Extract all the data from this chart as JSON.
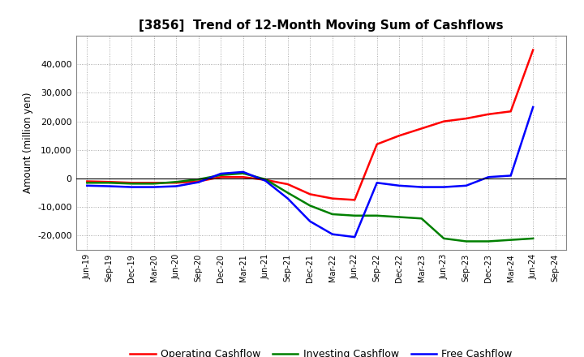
{
  "title": "[3856]  Trend of 12-Month Moving Sum of Cashflows",
  "ylabel": "Amount (million yen)",
  "ylim": [
    -25000,
    50000
  ],
  "yticks": [
    -20000,
    -10000,
    0,
    10000,
    20000,
    30000,
    40000
  ],
  "background_color": "#ffffff",
  "grid_color": "#aaaaaa",
  "labels": [
    "Jun-19",
    "Sep-19",
    "Dec-19",
    "Mar-20",
    "Jun-20",
    "Sep-20",
    "Dec-20",
    "Mar-21",
    "Jun-21",
    "Sep-21",
    "Dec-21",
    "Mar-22",
    "Jun-22",
    "Sep-22",
    "Dec-22",
    "Mar-23",
    "Jun-23",
    "Sep-23",
    "Dec-23",
    "Mar-24",
    "Jun-24",
    "Sep-24"
  ],
  "operating": [
    -1000,
    -1200,
    -1500,
    -1500,
    -1500,
    -1000,
    500,
    500,
    -500,
    -2000,
    -5500,
    -7000,
    -7500,
    12000,
    15000,
    17500,
    20000,
    21000,
    22500,
    23500,
    45000,
    null
  ],
  "investing": [
    -1500,
    -1500,
    -1800,
    -1800,
    -1200,
    -300,
    1200,
    1800,
    -300,
    -5000,
    -9500,
    -12500,
    -13000,
    -13000,
    -13500,
    -14000,
    -21000,
    -22000,
    -22000,
    -21500,
    -21000,
    null
  ],
  "free": [
    -2500,
    -2700,
    -3000,
    -3000,
    -2700,
    -1300,
    1700,
    2300,
    -800,
    -7000,
    -15000,
    -19500,
    -20500,
    -1500,
    -2500,
    -3000,
    -3000,
    -2500,
    500,
    1000,
    25000,
    null
  ],
  "op_color": "#ff0000",
  "inv_color": "#008000",
  "free_color": "#0000ff",
  "line_width": 1.8
}
